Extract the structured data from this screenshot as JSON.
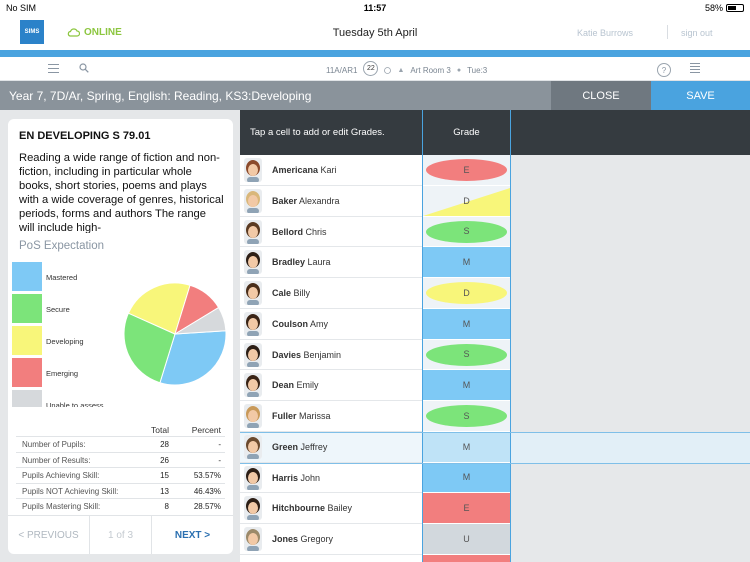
{
  "status_bar": {
    "carrier": "No SIM",
    "time": "11:57",
    "battery": "58%",
    "battery_level": 0.58
  },
  "header": {
    "logo_text": "SIMS",
    "connection_status": "ONLINE",
    "date": "Tuesday 5th April",
    "user_name": "Katie Burrows",
    "signout_label": "sign out"
  },
  "toolbar": {
    "class_code": "11A/AR1",
    "lesson_number": "22",
    "room": "Art Room 3",
    "period": "Tue:3",
    "help_label": "?",
    "icons": [
      "list-icon",
      "search-icon",
      "clock-icon",
      "location-icon",
      "person-icon",
      "help-icon",
      "notes-icon"
    ]
  },
  "title_bar": {
    "title": "Year  7, 7D/Ar, Spring, English: Reading, KS3:Developing",
    "close_label": "CLOSE",
    "save_label": "SAVE"
  },
  "skill": {
    "code": "EN DEVELOPING S 79.01",
    "description": "Reading a wide range of fiction and non-fiction, including in particular whole books, short stories, poems and plays with a wide coverage of genres, historical periods, forms and authors The range will include high-"
  },
  "pos_expectation": {
    "title": "PoS Expectation",
    "legend": [
      {
        "label": "Mastered",
        "color": "#7ec9f5"
      },
      {
        "label": "Secure",
        "color": "#7ce47a"
      },
      {
        "label": "Developing",
        "color": "#f8f67a"
      },
      {
        "label": "Emerging",
        "color": "#f27e7e"
      },
      {
        "label": "Unable to assess",
        "color": "#d6d9dc"
      }
    ]
  },
  "stats": {
    "col_total": "Total",
    "col_percent": "Percent",
    "rows": [
      {
        "label": "Number of Pupils:",
        "total": "28",
        "percent": "-"
      },
      {
        "label": "Number of Results:",
        "total": "26",
        "percent": "-"
      },
      {
        "label": "Pupils Achieving Skill:",
        "total": "15",
        "percent": "53.57%"
      },
      {
        "label": "Pupils NOT Achieving Skill:",
        "total": "13",
        "percent": "46.43%"
      },
      {
        "label": "Pupils Mastering Skill:",
        "total": "8",
        "percent": "28.57%"
      }
    ]
  },
  "pager": {
    "prev_label": "< PREVIOUS",
    "count": "1 of 3",
    "next_label": "NEXT >"
  },
  "grid": {
    "instruction": "Tap a cell to add or edit Grades.",
    "grade_header": "Grade",
    "pupils": [
      {
        "surname": "Americana",
        "forename": "Kari",
        "grade": "E",
        "style": "ellipse",
        "color": "#f27e7e",
        "bg": "#eef3f7",
        "hair": "#8b4a2b"
      },
      {
        "surname": "Baker",
        "forename": "Alexandra",
        "grade": "D",
        "style": "triangle",
        "color": "#f8f67a",
        "bg": "#eef3f7",
        "hair": "#d9b77a"
      },
      {
        "surname": "Bellord",
        "forename": "Chris",
        "grade": "S",
        "style": "ellipse",
        "color": "#7ce47a",
        "bg": "#eef3f7",
        "hair": "#5a3a22"
      },
      {
        "surname": "Bradley",
        "forename": "Laura",
        "grade": "M",
        "style": "fill",
        "color": "#7ec9f5",
        "bg": "#7ec9f5",
        "hair": "#2d1f16"
      },
      {
        "surname": "Cale",
        "forename": "Billy",
        "grade": "D",
        "style": "ellipse",
        "color": "#f8f67a",
        "bg": "#eef3f7",
        "hair": "#4a2e1a"
      },
      {
        "surname": "Coulson",
        "forename": "Amy",
        "grade": "M",
        "style": "fill",
        "color": "#7ec9f5",
        "bg": "#7ec9f5",
        "hair": "#3a2416"
      },
      {
        "surname": "Davies",
        "forename": "Benjamin",
        "grade": "S",
        "style": "ellipse",
        "color": "#7ce47a",
        "bg": "#eef3f7",
        "hair": "#2d1f16"
      },
      {
        "surname": "Dean",
        "forename": "Emily",
        "grade": "M",
        "style": "fill",
        "color": "#7ec9f5",
        "bg": "#7ec9f5",
        "hair": "#3a2416"
      },
      {
        "surname": "Fuller",
        "forename": "Marissa",
        "grade": "S",
        "style": "ellipse",
        "color": "#7ce47a",
        "bg": "#eef3f7",
        "hair": "#c99a5a"
      },
      {
        "surname": "Green",
        "forename": "Jeffrey",
        "grade": "M",
        "style": "fill",
        "color": "#bfe3f7",
        "bg": "#bfe3f7",
        "hair": "#6b4a2e"
      },
      {
        "surname": "Harris",
        "forename": "John",
        "grade": "M",
        "style": "fill",
        "color": "#7ec9f5",
        "bg": "#7ec9f5",
        "hair": "#2d1f16"
      },
      {
        "surname": "Hitchbourne",
        "forename": "Bailey",
        "grade": "E",
        "style": "fill",
        "color": "#f27e7e",
        "bg": "#f27e7e",
        "hair": "#2d1f16"
      },
      {
        "surname": "Jones",
        "forename": "Gregory",
        "grade": "U",
        "style": "fill",
        "color": "#d2d8dd",
        "bg": "#d2d8dd",
        "hair": "#9c8a6a"
      },
      {
        "surname": "",
        "forename": "",
        "grade": "",
        "style": "fill",
        "color": "#f27e7e",
        "bg": "#f27e7e",
        "hair": "#2d1f16"
      }
    ],
    "selected_index": 9
  },
  "chart_data": {
    "type": "pie",
    "categories": [
      "Mastered",
      "Secure",
      "Developing",
      "Emerging",
      "Unable to assess"
    ],
    "values": [
      8,
      7,
      6,
      3,
      2
    ],
    "colors": [
      "#7ec9f5",
      "#7ce47a",
      "#f8f67a",
      "#f27e7e",
      "#d6d9dc"
    ],
    "title": "PoS Expectation"
  }
}
